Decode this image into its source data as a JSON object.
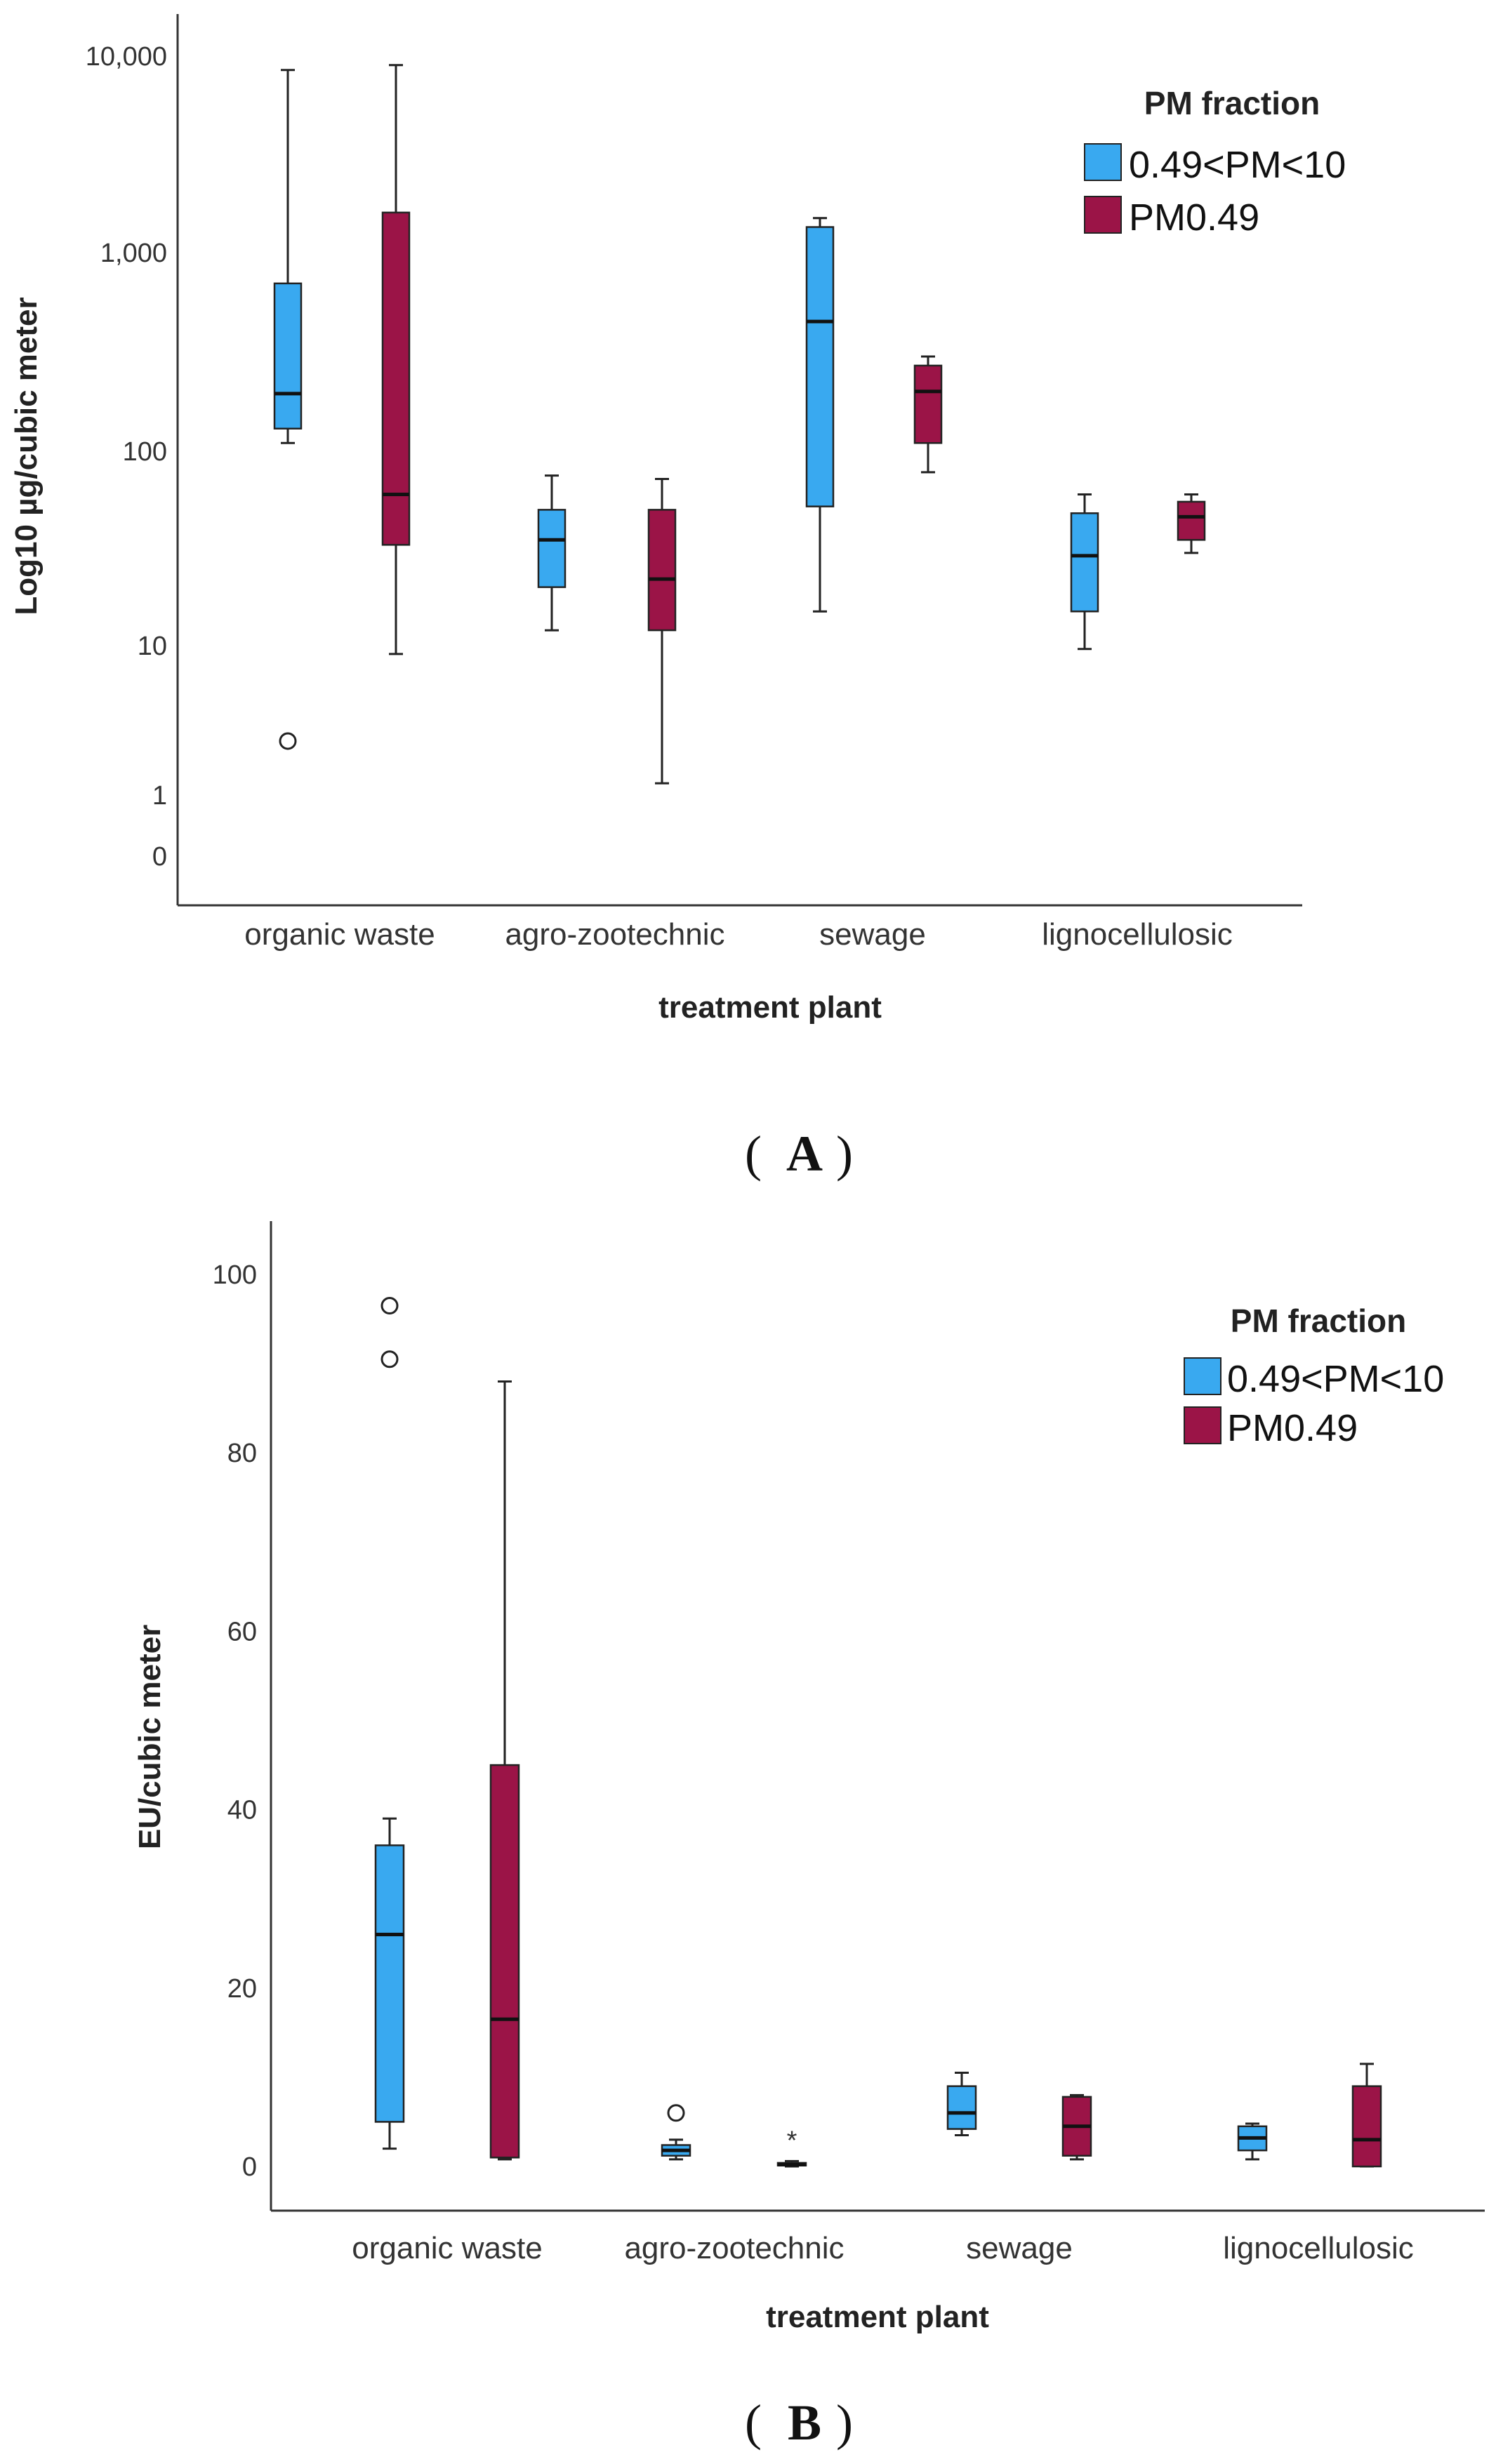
{
  "colors": {
    "blue": "#39a9f0",
    "maroon": "#9b1447",
    "axis": "#333333",
    "whisker": "#222222"
  },
  "chart_data": [
    {
      "panel_letter": "A",
      "type": "boxplot",
      "scale": "log10",
      "ylabel": "Log10 µg/cubic meter",
      "xlabel": "treatment plant",
      "ylim": [
        0.3,
        12000
      ],
      "y_ticks": [
        {
          "value": 0.5,
          "label": "0"
        },
        {
          "value": 1,
          "label": "1"
        },
        {
          "value": 10,
          "label": "10"
        },
        {
          "value": 100,
          "label": "100"
        },
        {
          "value": 1000,
          "label": "1,000"
        },
        {
          "value": 10000,
          "label": "10,000"
        }
      ],
      "categories": [
        "organic waste",
        "agro-zootechnic",
        "sewage",
        "lignocellulosic"
      ],
      "legend": {
        "title": "PM fraction",
        "position": "top-right"
      },
      "series": [
        {
          "name": "0.49<PM<10",
          "color": "#39a9f0",
          "boxes": [
            {
              "min": 110,
              "q1": 130,
              "median": 195,
              "q3": 700,
              "max": 8500,
              "outliers": [
                {
                  "value": 2.3,
                  "marker": "circle"
                }
              ]
            },
            {
              "min": 12,
              "q1": 20,
              "median": 35,
              "q3": 50,
              "max": 75,
              "outliers": []
            },
            {
              "min": 15,
              "q1": 52,
              "median": 450,
              "q3": 1350,
              "max": 1500,
              "outliers": []
            },
            {
              "min": 9.5,
              "q1": 15,
              "median": 29,
              "q3": 48,
              "max": 60,
              "outliers": []
            }
          ]
        },
        {
          "name": "PM0.49",
          "color": "#9b1447",
          "boxes": [
            {
              "min": 8.8,
              "q1": 33,
              "median": 60,
              "q3": 1600,
              "max": 9000,
              "outliers": []
            },
            {
              "min": 1.2,
              "q1": 12,
              "median": 22,
              "q3": 50,
              "max": 72,
              "outliers": []
            },
            {
              "min": 78,
              "q1": 110,
              "median": 200,
              "q3": 270,
              "max": 300,
              "outliers": []
            },
            {
              "min": 30,
              "q1": 35,
              "median": 46,
              "q3": 55,
              "max": 60,
              "outliers": []
            }
          ]
        }
      ]
    },
    {
      "panel_letter": "B",
      "type": "boxplot",
      "scale": "linear",
      "ylabel": "EU/cubic meter",
      "xlabel": "treatment plant",
      "ylim": [
        -6,
        106
      ],
      "y_ticks": [
        {
          "value": 0,
          "label": "0"
        },
        {
          "value": 20,
          "label": "20"
        },
        {
          "value": 40,
          "label": "40"
        },
        {
          "value": 60,
          "label": "60"
        },
        {
          "value": 80,
          "label": "80"
        },
        {
          "value": 100,
          "label": "100"
        }
      ],
      "categories": [
        "organic waste",
        "agro-zootechnic",
        "sewage",
        "lignocellulosic"
      ],
      "legend": {
        "title": "PM fraction",
        "position": "top-right"
      },
      "series": [
        {
          "name": "0.49<PM<10",
          "color": "#39a9f0",
          "boxes": [
            {
              "min": 2,
              "q1": 5,
              "median": 26,
              "q3": 36,
              "max": 39,
              "outliers": [
                {
                  "value": 96.5,
                  "marker": "circle"
                },
                {
                  "value": 90.5,
                  "marker": "circle"
                }
              ]
            },
            {
              "min": 0.8,
              "q1": 1.2,
              "median": 1.8,
              "q3": 2.4,
              "max": 3,
              "outliers": [
                {
                  "value": 6,
                  "marker": "circle"
                }
              ]
            },
            {
              "min": 3.5,
              "q1": 4.2,
              "median": 6,
              "q3": 9,
              "max": 10.5,
              "outliers": []
            },
            {
              "min": 0.8,
              "q1": 1.8,
              "median": 3.2,
              "q3": 4.5,
              "max": 4.8,
              "outliers": []
            }
          ]
        },
        {
          "name": "PM0.49",
          "color": "#9b1447",
          "boxes": [
            {
              "min": 0.8,
              "q1": 1,
              "median": 16.5,
              "q3": 45,
              "max": 88,
              "outliers": []
            },
            {
              "min": 0,
              "q1": 0.1,
              "median": 0.2,
              "q3": 0.4,
              "max": 0.6,
              "outliers": [
                {
                  "value": 3.5,
                  "marker": "star"
                }
              ]
            },
            {
              "min": 0.8,
              "q1": 1.2,
              "median": 4.5,
              "q3": 7.8,
              "max": 8,
              "outliers": []
            },
            {
              "min": 0,
              "q1": 0,
              "median": 3,
              "q3": 9,
              "max": 11.5,
              "outliers": []
            }
          ]
        }
      ]
    }
  ]
}
